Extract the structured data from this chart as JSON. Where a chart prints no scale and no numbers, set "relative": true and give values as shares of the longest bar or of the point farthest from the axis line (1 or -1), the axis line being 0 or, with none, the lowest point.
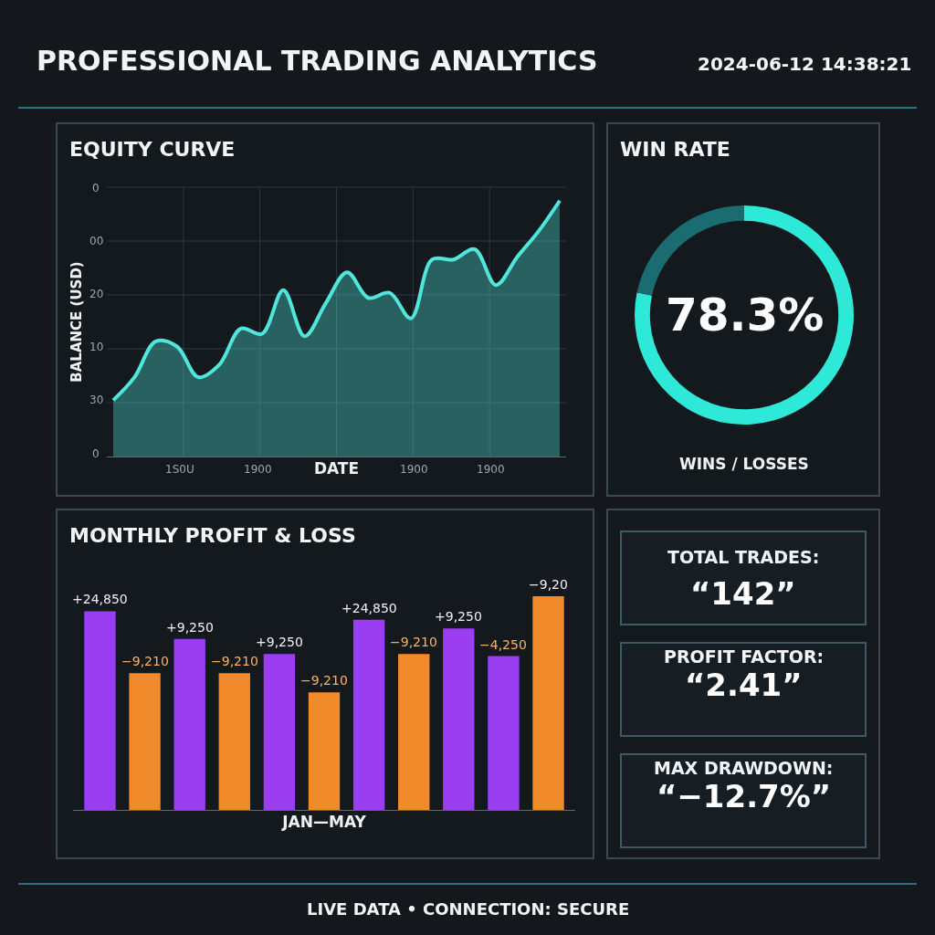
{
  "chart_data": [
    {
      "type": "other",
      "annotations": [
        "PROFESSIONAL TRADING ANALYTICS",
        "2024-06-12 14:38:21",
        "LIVE DATA • CONNECTION: SECURE"
      ]
    },
    {
      "type": "area",
      "title": "EQUITY CURVE",
      "xlabel": "DATE",
      "ylabel": "BALANCE (USD)",
      "relative": true,
      "grid": true,
      "annotations": [
        "0",
        "00",
        "20",
        "10",
        "30",
        "0",
        "1S0U",
        "1900",
        "1900",
        "1900"
      ],
      "categories": [
        null,
        null,
        null,
        null,
        null,
        null,
        null,
        null,
        null,
        null,
        null,
        null,
        null,
        null,
        null,
        null,
        null,
        null,
        null,
        null,
        null,
        null
      ],
      "series": [
        {
          "color": "#4fe6dc",
          "values": [
            0.22,
            0.31,
            0.45,
            0.43,
            0.31,
            0.36,
            0.5,
            0.48,
            0.65,
            0.47,
            0.6,
            0.72,
            0.62,
            0.64,
            0.54,
            0.77,
            0.77,
            0.81,
            0.67,
            0.78,
            0.88,
            1.0
          ]
        }
      ]
    },
    {
      "type": "donut",
      "title": "WIN RATE",
      "categories": [
        null,
        null
      ],
      "values": [
        78.3,
        21.7
      ],
      "colors": [
        "#2ee8d8",
        "#1b6c70"
      ],
      "value_labels": [
        "78.3%",
        null
      ],
      "annotations": [
        "WINS / LOSSES"
      ]
    },
    {
      "type": "bar",
      "title": "MONTHLY PROFIT & LOSS",
      "xlabel": "JAN—MAY",
      "relative": true,
      "categories": [
        null,
        null,
        null,
        null,
        null,
        null,
        null,
        null,
        null,
        null,
        null
      ],
      "values": [
        0.93,
        0.64,
        0.8,
        0.64,
        0.73,
        0.55,
        0.89,
        0.73,
        0.85,
        0.72,
        1.0
      ],
      "colors": [
        "#9b3df0",
        "#f08a2a",
        "#9b3df0",
        "#f08a2a",
        "#9b3df0",
        "#f08a2a",
        "#9b3df0",
        "#f08a2a",
        "#9b3df0",
        "#9b3df0",
        "#f08a2a"
      ],
      "annotations": [
        "+24,850",
        "−9,210",
        "+9,250",
        "−9,210",
        "+9,250",
        "−9,210",
        "+24,850",
        "−9,210",
        "+9,250",
        "−4,250",
        "−9,20"
      ]
    },
    {
      "type": "other",
      "annotations": [
        "TOTAL TRADES:",
        "“142”",
        "PROFIT FACTOR:",
        "“2.41”",
        "MAX DRAWDOWN:",
        "“−12.7%”"
      ]
    }
  ]
}
